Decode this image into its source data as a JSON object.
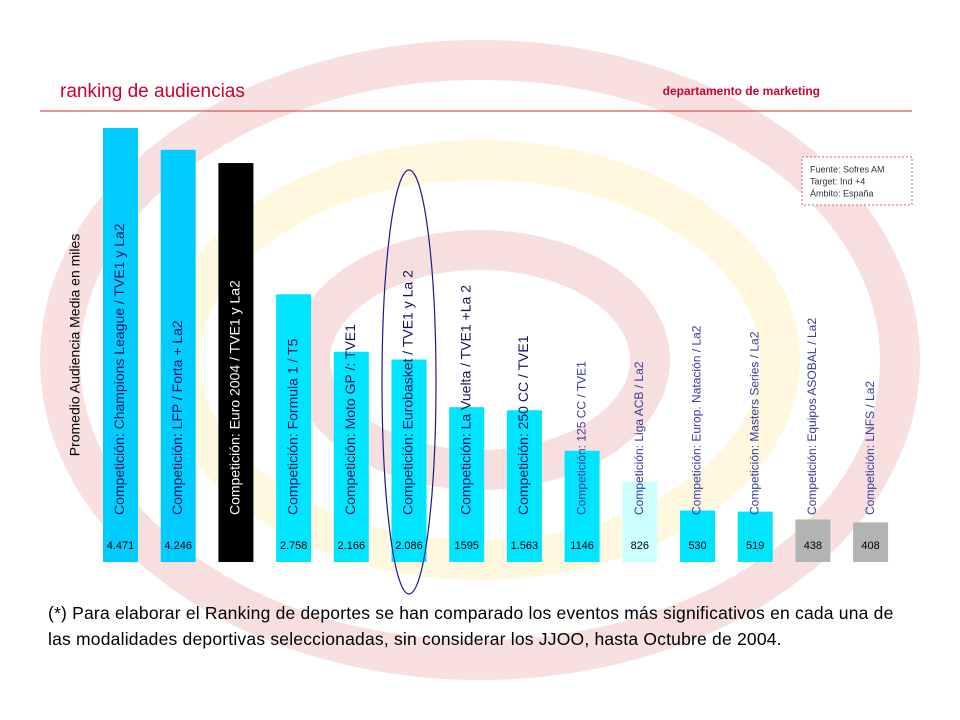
{
  "chart_data": {
    "type": "bar",
    "title": "ranking de audiencias",
    "subtitle": "departamento de marketing",
    "y_label": "Promedio Audiencia Media en miles",
    "source": [
      "Fuente: Sofres AM",
      "Target: Ind +4",
      "Ámbito: España"
    ],
    "categories": [
      "Competición: Champions League / TVE1 y La2",
      "Competición: LFP / Forta + La2",
      "Competición: Euro 2004 / TVE1 y La2",
      "Competición: Formula 1 / T5",
      "Competición: Moto GP /: TVE1",
      "Competición: Eurobasket / TVE1 y La 2",
      "Competición: La Vuelta / TVE1 +La 2",
      "Competición: 250 CC / TVE1",
      "Competición: 125 CC / TVE1",
      "Competición: Liga ACB / La2",
      "Competición: Europ. Natación / La2",
      "Competición: Masters Series / La2",
      "Competición: Equipos ASOBAL / La2",
      "Competición: LNFS / La2"
    ],
    "values": [
      4471,
      4246,
      4110,
      2758,
      2166,
      2086,
      1595,
      1563,
      1146,
      826,
      530,
      519,
      438,
      408
    ],
    "value_labels": [
      "4.471",
      "4.246",
      null,
      "2.758",
      "2.166",
      "2.086",
      "1595",
      "1.563",
      "1146",
      "826",
      "530",
      "519",
      "438",
      "408"
    ],
    "colors": [
      "#00ccff",
      "#00ccff",
      "#000000",
      "#00e5ff",
      "#00e5ff",
      "#00e5ff",
      "#00e5ff",
      "#00e5ff",
      "#00e5ff",
      "#ccffff",
      "#00e5ff",
      "#00e5ff",
      "#b3b3b3",
      "#b3b3b3"
    ],
    "footnote": "(*) Para elaborar el Ranking de deportes se han comparado los eventos más significativos en cada una de las modalidades deportivas seleccionadas, sin considerar los JJOO, hasta Octubre de 2004."
  }
}
